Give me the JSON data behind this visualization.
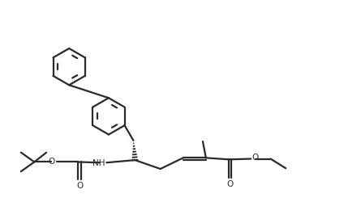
{
  "bg_color": "#ffffff",
  "line_color": "#2a2a2a",
  "line_width": 1.6,
  "fig_width": 4.24,
  "fig_height": 2.76,
  "dpi": 100,
  "xlim": [
    0,
    10.6
  ],
  "ylim": [
    0,
    7.0
  ]
}
